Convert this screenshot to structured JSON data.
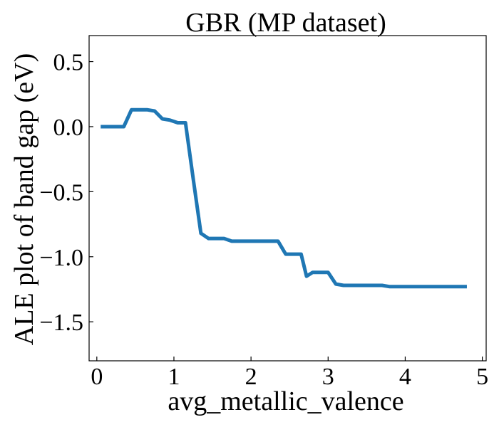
{
  "chart_data": {
    "type": "line",
    "title": "GBR (MP dataset)",
    "xlabel": "avg_metallic_valence",
    "ylabel": "ALE plot of band gap (eV)",
    "xlim": [
      -0.1,
      5.05
    ],
    "ylim": [
      -1.8,
      0.7
    ],
    "x_ticks": [
      0,
      1,
      2,
      3,
      4,
      5
    ],
    "x_tick_labels": [
      "0",
      "1",
      "2",
      "3",
      "4",
      "5"
    ],
    "y_ticks": [
      0.5,
      0.0,
      -0.5,
      -1.0,
      -1.5
    ],
    "y_tick_labels": [
      "0.5",
      "0.0",
      "−0.5",
      "−1.0",
      "−1.5"
    ],
    "grid": false,
    "series": [
      {
        "color": "#1f77b4",
        "x": [
          0.05,
          0.35,
          0.45,
          0.55,
          0.65,
          0.75,
          0.85,
          0.95,
          1.05,
          1.15,
          1.25,
          1.35,
          1.45,
          1.55,
          1.65,
          1.75,
          1.85,
          1.95,
          2.05,
          2.15,
          2.25,
          2.35,
          2.45,
          2.55,
          2.65,
          2.72,
          2.8,
          2.9,
          3.0,
          3.1,
          3.2,
          3.3,
          3.5,
          3.7,
          3.8,
          4.0,
          4.2,
          4.4,
          4.6,
          4.8
        ],
        "y": [
          0.0,
          0.0,
          0.13,
          0.13,
          0.13,
          0.12,
          0.06,
          0.05,
          0.03,
          0.03,
          -0.4,
          -0.82,
          -0.86,
          -0.86,
          -0.86,
          -0.88,
          -0.88,
          -0.88,
          -0.88,
          -0.88,
          -0.88,
          -0.88,
          -0.98,
          -0.98,
          -0.98,
          -1.15,
          -1.12,
          -1.12,
          -1.12,
          -1.21,
          -1.22,
          -1.22,
          -1.22,
          -1.22,
          -1.23,
          -1.23,
          -1.23,
          -1.23,
          -1.23,
          -1.23
        ]
      }
    ]
  }
}
